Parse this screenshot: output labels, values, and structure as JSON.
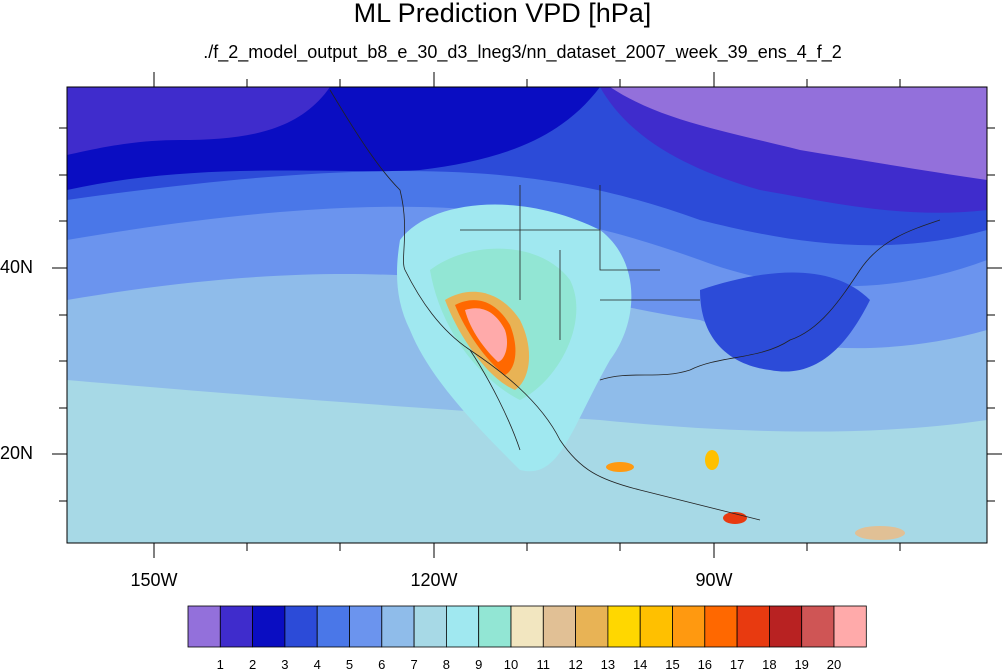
{
  "title": "ML Prediction VPD [hPa]",
  "subtitle": "./f_2_model_output_b8_e_30_d3_lneg3/nn_dataset_2007_week_39_ens_4_f_2",
  "axes": {
    "lat_labels": [
      "40N",
      "20N"
    ],
    "lon_labels": [
      "150W",
      "120W",
      "90W"
    ]
  },
  "colorbar": {
    "colors": [
      "#9370db",
      "#3f2ccc",
      "#0a0dc2",
      "#2c4bd8",
      "#4a77e8",
      "#6b94ee",
      "#8fbcea",
      "#a7d9e6",
      "#a0e8f0",
      "#92e6d4",
      "#f2e6c0",
      "#e1c095",
      "#e8b355",
      "#ffd700",
      "#ffc000",
      "#ff9910",
      "#ff6800",
      "#e83a10",
      "#b82222",
      "#cf5555",
      "#ffaaaa"
    ],
    "labels": [
      "1",
      "2",
      "3",
      "4",
      "5",
      "6",
      "7",
      "8",
      "9",
      "10",
      "11",
      "12",
      "13",
      "14",
      "15",
      "16",
      "17",
      "18",
      "19",
      "20"
    ]
  }
}
